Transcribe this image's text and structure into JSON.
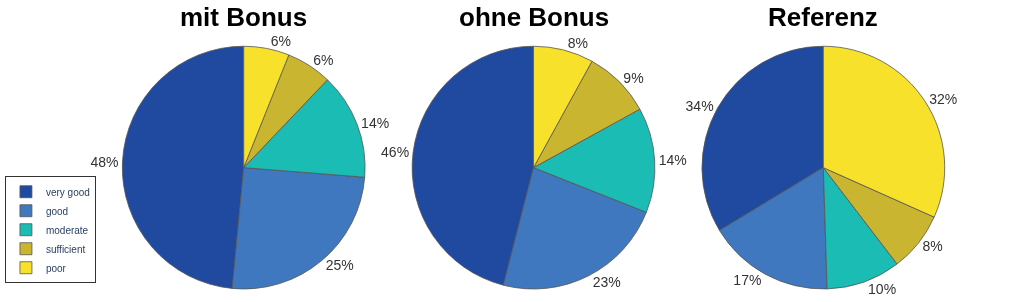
{
  "chart_data": [
    {
      "type": "pie",
      "title": "mit Bonus",
      "categories": [
        "very good",
        "good",
        "moderate",
        "sufficient",
        "poor"
      ],
      "values": [
        48,
        25,
        14,
        6,
        6
      ],
      "value_labels": [
        "48%",
        "25%",
        "14%",
        "6%",
        "6%"
      ],
      "colors": [
        "#1f4aa0",
        "#3f78bf",
        "#1abcb4",
        "#c9b52f",
        "#f7e12a"
      ],
      "legend": "bottom left"
    },
    {
      "type": "pie",
      "title": "ohne Bonus",
      "categories": [
        null,
        null,
        null,
        null,
        null
      ],
      "values": [
        46,
        23,
        14,
        9,
        8
      ],
      "value_labels": [
        "46%",
        "23%",
        "14%",
        "9%",
        "8%"
      ],
      "colors": [
        "#1f4aa0",
        "#3f78bf",
        "#1abcb4",
        "#c9b52f",
        "#f7e12a"
      ]
    },
    {
      "type": "pie",
      "title": "Referenz",
      "categories": [
        null,
        null,
        null,
        null,
        null
      ],
      "values": [
        34,
        17,
        10,
        8,
        32
      ],
      "value_labels": [
        "34%",
        "17%",
        "10%",
        "8%",
        "32%"
      ],
      "colors": [
        "#1f4aa0",
        "#3f78bf",
        "#1abcb4",
        "#c9b52f",
        "#f7e12a"
      ]
    }
  ]
}
